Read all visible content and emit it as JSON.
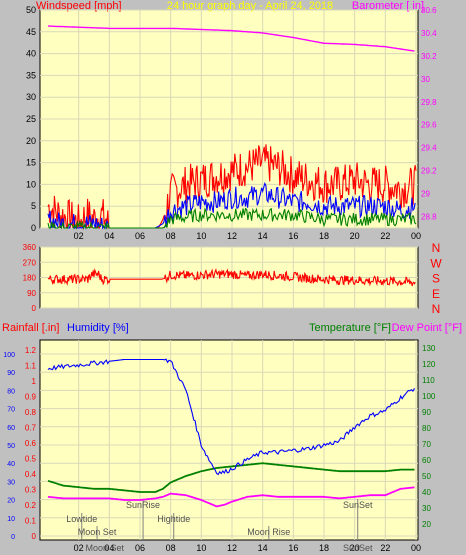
{
  "colors": {
    "panel_bg": "#c0c0c0",
    "plot_bg": "#ffffc0",
    "grid": "#d8d8b8",
    "wind": "#ff0000",
    "gust_blue": "#0000ff",
    "avg_green": "#008000",
    "barometer": "#ff00ff",
    "humidity": "#0000ff",
    "temperature": "#008000",
    "dewpoint": "#ff00ff",
    "title": "#ffff00",
    "rain_label": "#ff0000",
    "baro_label": "#ff00ff",
    "axis_text": "#000000"
  },
  "chart_data": [
    {
      "type": "line",
      "title": "24 hour graph day - April 24, 2018",
      "left_label": "Windspeed [mph]",
      "right_label": "Barometer [ in]",
      "x_ticks": [
        "02",
        "04",
        "06",
        "08",
        "10",
        "12",
        "14",
        "16",
        "18",
        "20",
        "22",
        "00"
      ],
      "y_left": {
        "min": 0,
        "max": 50,
        "ticks": [
          0,
          5,
          10,
          15,
          20,
          25,
          30,
          35,
          40,
          45,
          50
        ]
      },
      "y_right": {
        "min": 28.7,
        "max": 30.6,
        "ticks": [
          "28.8",
          "29",
          "29.2",
          "29.4",
          "29.6",
          "29.8",
          "30",
          "30.2",
          "30.4",
          "30.6"
        ]
      },
      "grid": true,
      "series": [
        {
          "kind": "barometer",
          "x": [
            0,
            2,
            4,
            6,
            8,
            10,
            12,
            14,
            16,
            18,
            20,
            22,
            24
          ],
          "values": [
            30.46,
            30.45,
            30.44,
            30.44,
            30.44,
            30.43,
            30.42,
            30.4,
            30.36,
            30.31,
            30.3,
            30.28,
            30.24
          ]
        },
        {
          "kind": "wind-gust",
          "x": [
            0,
            0.8,
            1.5,
            2,
            2.5,
            3,
            3.4,
            3.8,
            4,
            5,
            6,
            7,
            7.2,
            7.5,
            8,
            9,
            10,
            11,
            12,
            13,
            14,
            15,
            16,
            17,
            18,
            19,
            20,
            21,
            22,
            23,
            24
          ],
          "values": [
            5,
            3,
            2,
            1,
            3,
            2,
            3,
            2,
            0,
            0,
            0,
            0,
            0,
            2,
            8,
            10,
            11,
            12,
            13,
            14,
            15,
            14,
            12,
            11,
            10,
            10,
            11,
            10,
            10,
            9,
            10
          ]
        },
        {
          "kind": "wind-avg",
          "x": [
            0,
            1,
            2,
            3,
            4,
            5,
            6,
            7,
            7.5,
            8,
            9,
            10,
            11,
            12,
            13,
            14,
            15,
            16,
            17,
            18,
            19,
            20,
            21,
            22,
            23,
            24
          ],
          "values": [
            2,
            1,
            1,
            1,
            0,
            0,
            0,
            0,
            1,
            4,
            5,
            6,
            6,
            7,
            7,
            8,
            7,
            6,
            6,
            5,
            5,
            5,
            5,
            5,
            4,
            5
          ]
        },
        {
          "kind": "wind-low",
          "x": [
            0,
            4,
            7.5,
            8,
            10,
            12,
            14,
            16,
            18,
            20,
            22,
            24
          ],
          "values": [
            0,
            0,
            0,
            2,
            3,
            3,
            3,
            3,
            2,
            2,
            2,
            2
          ]
        }
      ]
    },
    {
      "type": "line",
      "left_ticks": [
        "360",
        "270",
        "180",
        "90",
        "0"
      ],
      "right_labels": [
        "N",
        "W",
        "S",
        "E",
        "N"
      ],
      "y": {
        "min": 0,
        "max": 360
      },
      "series": [
        {
          "kind": "direction",
          "x": [
            0,
            1,
            2,
            2.6,
            2.9,
            3.3,
            3.5,
            4,
            5,
            6,
            7,
            7.4,
            7.6,
            8,
            9,
            10,
            11,
            12,
            13,
            14,
            15,
            16,
            17,
            18,
            19,
            20,
            21,
            22,
            23,
            24
          ],
          "values": [
            170,
            170,
            170,
            170,
            200,
            200,
            170,
            170,
            170,
            170,
            170,
            170,
            175,
            195,
            190,
            195,
            200,
            200,
            190,
            200,
            190,
            185,
            175,
            170,
            165,
            165,
            160,
            160,
            155,
            150
          ]
        }
      ]
    },
    {
      "type": "line",
      "left_label_rain": "Rainfall [.in]",
      "left_label_humidity": "Humidity [%]",
      "right_label_temp": "Temperature [°F]",
      "right_label_dew": "Dew Point [°F]",
      "rain_ticks": [
        "0",
        "0.1",
        "0.2",
        "0.3",
        "0.4",
        "0.5",
        "0.6",
        "0.7",
        "0.8",
        "0.9",
        "1",
        "1.1",
        "1.2"
      ],
      "humidity_ticks": [
        "0",
        "10",
        "20",
        "30",
        "40",
        "50",
        "60",
        "70",
        "80",
        "90",
        "100"
      ],
      "temp_ticks": [
        "20",
        "30",
        "40",
        "50",
        "60",
        "70",
        "80",
        "90",
        "100",
        "110",
        "120",
        "130"
      ],
      "x_ticks": [
        "02",
        "04",
        "06",
        "08",
        "10",
        "12",
        "14",
        "16",
        "18",
        "20",
        "22",
        "00"
      ],
      "events": [
        {
          "label": "Lowtide",
          "x": 2.2,
          "row": 1
        },
        {
          "label": "Moon Set",
          "x": 3.2,
          "row": 2
        },
        {
          "label": "Moon Set",
          "x": 3.7,
          "row": 3
        },
        {
          "label": "SunRise",
          "x": 6.2,
          "row": 0
        },
        {
          "label": "Hightide",
          "x": 8.2,
          "row": 1
        },
        {
          "label": "Moon Rise",
          "x": 14.4,
          "row": 2
        },
        {
          "label": "SunSet",
          "x": 20.2,
          "row": 0
        },
        {
          "label": "SunSet",
          "x": 20.2,
          "row": 3
        }
      ],
      "series": [
        {
          "kind": "humidity",
          "x": [
            0,
            1,
            2,
            3,
            4,
            5,
            6,
            7,
            7.5,
            8,
            9,
            9.5,
            10,
            10.5,
            11,
            11.5,
            12,
            13,
            14,
            15,
            16,
            17,
            18,
            19,
            20,
            21,
            22,
            23,
            24
          ],
          "values": [
            92,
            93,
            94,
            95,
            96,
            97,
            97,
            97,
            97,
            96,
            80,
            65,
            50,
            42,
            35,
            35,
            37,
            42,
            46,
            46,
            47,
            48,
            50,
            52,
            60,
            66,
            69,
            76,
            82
          ]
        },
        {
          "kind": "temperature",
          "x": [
            0,
            1,
            2,
            3,
            4,
            5,
            6,
            7,
            7.5,
            8,
            9,
            10,
            11,
            12,
            13,
            14,
            15,
            16,
            17,
            18,
            19,
            20,
            21,
            22,
            23,
            24
          ],
          "values": [
            47,
            44,
            43,
            42,
            42,
            41,
            40,
            40,
            42,
            46,
            50,
            53,
            55,
            56,
            57,
            58,
            57,
            56,
            55,
            54,
            53,
            53,
            53,
            53,
            54,
            54
          ]
        },
        {
          "kind": "dewpoint",
          "x": [
            0,
            1,
            2,
            3,
            4,
            5,
            6,
            7,
            7.5,
            8,
            9,
            10,
            10.5,
            11,
            11.5,
            12,
            13,
            14,
            15,
            16,
            17,
            18,
            19,
            20,
            21,
            22,
            23,
            24
          ],
          "values": [
            37,
            36,
            36,
            36,
            36,
            35,
            35,
            36,
            37,
            39,
            38,
            35,
            33,
            31,
            32,
            34,
            37,
            38,
            37,
            37,
            37,
            37,
            36,
            37,
            38,
            38,
            42,
            43
          ]
        }
      ]
    }
  ]
}
